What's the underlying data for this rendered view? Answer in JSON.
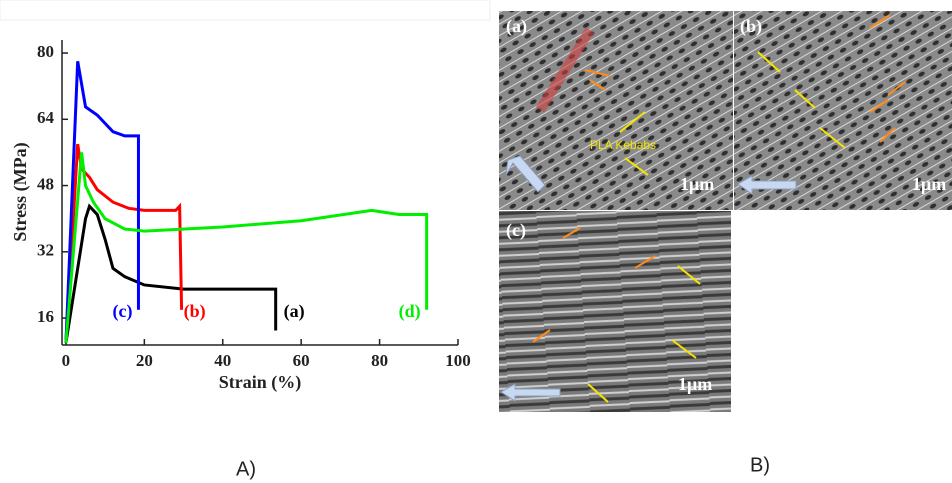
{
  "chart_data": {
    "type": "line",
    "xlabel": "Strain (%)",
    "ylabel": "Stress (MPa)",
    "xlim": [
      -1,
      100
    ],
    "ylim": [
      9.5,
      83
    ],
    "xticks": [
      0,
      20,
      40,
      60,
      80,
      100
    ],
    "yticks": [
      16,
      32,
      48,
      64,
      80
    ],
    "series": [
      {
        "name": "(a)",
        "color": "#000000",
        "x": [
          0,
          5,
          6,
          8,
          10,
          12,
          15,
          20,
          30,
          40,
          50,
          53.5,
          53.5
        ],
        "values": [
          10,
          40,
          43,
          41,
          35,
          28,
          26,
          24,
          23,
          23,
          23,
          23,
          13
        ]
      },
      {
        "name": "(b)",
        "color": "#ff0000",
        "x": [
          0,
          3,
          4,
          6,
          8,
          12,
          16,
          20,
          28,
          29,
          29.5
        ],
        "values": [
          10,
          58,
          52,
          50,
          47,
          44,
          42.5,
          42,
          42,
          43,
          18
        ]
      },
      {
        "name": "(c)",
        "color": "#0000ff",
        "x": [
          0,
          3,
          5,
          8,
          12,
          15,
          18.5,
          18.5
        ],
        "values": [
          10,
          78,
          67,
          65,
          61,
          60,
          60,
          18
        ]
      },
      {
        "name": "(d)",
        "color": "#00ee00",
        "x": [
          0,
          4,
          5,
          7,
          10,
          15,
          20,
          40,
          60,
          78,
          85,
          92,
          92
        ],
        "values": [
          10,
          56,
          48,
          44,
          40,
          37.5,
          37,
          38,
          39.5,
          42,
          41,
          41,
          18
        ]
      }
    ]
  },
  "panels": {
    "labels": [
      "A)",
      "B)"
    ],
    "images": [
      {
        "label": "(a)",
        "annotation": "PLA Kebabs",
        "scale_bar": "1μm"
      },
      {
        "label": "(b)",
        "scale_bar": "1μm"
      },
      {
        "label": "(c)",
        "scale_bar": "1μm"
      }
    ]
  }
}
